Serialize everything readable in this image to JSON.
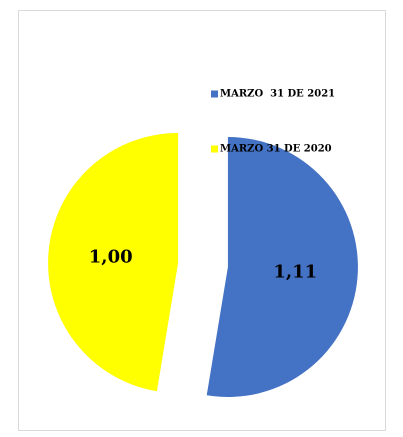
{
  "chart_data": {
    "type": "pie",
    "categories": [
      "MARZO  31 DE 2021",
      "MARZO 31 DE 2020"
    ],
    "values": [
      1.11,
      1.0
    ],
    "value_labels": [
      "1,11",
      "1,00"
    ],
    "colors": [
      "#4472c4",
      "#ffff00"
    ]
  }
}
